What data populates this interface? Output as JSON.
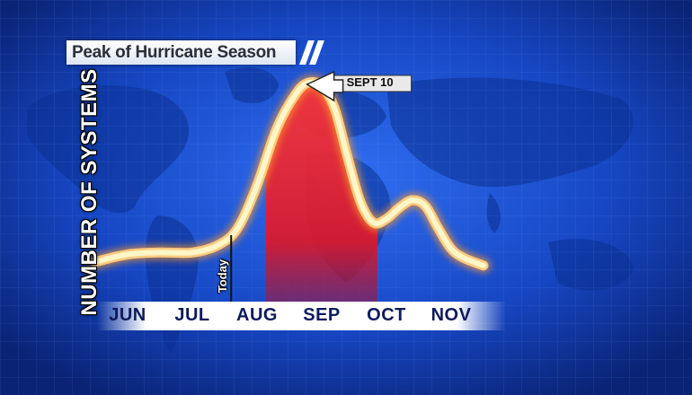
{
  "chart_data": {
    "type": "area",
    "title": "Peak of Hurricane Season",
    "ylabel": "NUMBER OF SYSTEMS",
    "xlabel": "",
    "categories": [
      "JUN",
      "JUL",
      "AUG",
      "SEP",
      "OCT",
      "NOV"
    ],
    "x_range": [
      0,
      5.8
    ],
    "ylim": [
      0,
      100
    ],
    "series": [
      {
        "x": [
          -0.5,
          0.0,
          0.5,
          1.0,
          1.4,
          1.7,
          2.0,
          2.3,
          2.6,
          2.8,
          3.0,
          3.2,
          3.4,
          3.6,
          3.8,
          4.0,
          4.2,
          4.4,
          4.6,
          4.8,
          5.0,
          5.2,
          5.5
        ],
        "values": [
          4,
          8,
          9,
          9,
          13,
          22,
          45,
          75,
          94,
          100,
          98,
          86,
          60,
          36,
          25,
          27,
          33,
          37,
          34,
          22,
          11,
          6,
          2
        ]
      }
    ],
    "highlight": {
      "month": "SEP",
      "color": "#e0202e"
    },
    "annotations": [
      {
        "text": "SEPT 10",
        "x": 2.8
      },
      {
        "text": "Today",
        "x": 1.6
      }
    ],
    "grid": false,
    "legend": "none"
  },
  "colors": {
    "background": "#0b2f8c",
    "curve": "#fff6c8",
    "highlight": "#e0202e",
    "month_text": "#0e1a5c"
  },
  "icons": {
    "callout": "left-arrow-icon"
  }
}
